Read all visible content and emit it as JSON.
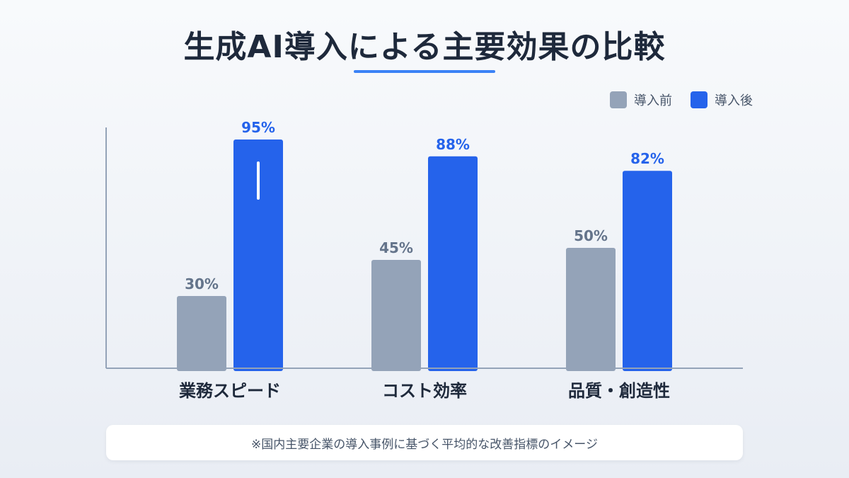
{
  "title": "生成AI導入による主要効果の比較",
  "colors": {
    "before": "#94a3b8",
    "after": "#2563eb",
    "after_label": "#2563eb",
    "before_label": "#64748b",
    "axis": "#94a3b8",
    "category": "#1e293b",
    "accent": "#3b82f6"
  },
  "footnote": "※国内主要企業の導入事例に基づく平均的な改善指標のイメージ",
  "chart_data": {
    "type": "bar",
    "title": "生成AI導入による主要効果の比較",
    "categories": [
      "業務スピード",
      "コスト効率",
      "品質・創造性"
    ],
    "series": [
      {
        "name": "導入前",
        "values": [
          30,
          45,
          50
        ],
        "labels": [
          "30%",
          "45%",
          "50%"
        ]
      },
      {
        "name": "導入後",
        "values": [
          95,
          88,
          82
        ],
        "labels": [
          "95%",
          "88%",
          "82%"
        ]
      }
    ],
    "ylim": [
      0,
      100
    ],
    "xlabel": "",
    "ylabel": "",
    "grid": false,
    "legend": "top-right"
  }
}
